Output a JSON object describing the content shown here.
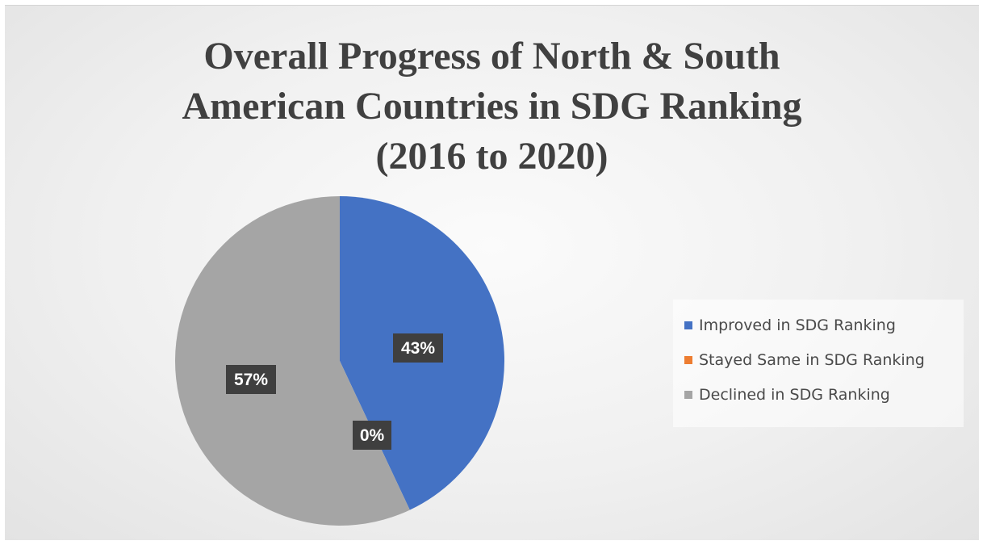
{
  "chart_data": {
    "type": "pie",
    "title_lines": [
      "Overall Progress of North & South",
      "American Countries in SDG Ranking",
      "(2016 to 2020)"
    ],
    "slices": [
      {
        "label": "Improved in SDG Ranking",
        "value": 43,
        "display": "43%",
        "color": "#4472c4"
      },
      {
        "label": "Stayed Same in SDG Ranking",
        "value": 0,
        "display": "0%",
        "color": "#ed7d31"
      },
      {
        "label": "Declined in SDG Ranking",
        "value": 57,
        "display": "57%",
        "color": "#a5a5a5"
      }
    ],
    "start_angle_deg": 0,
    "direction": "clockwise",
    "legend_position": "right"
  }
}
